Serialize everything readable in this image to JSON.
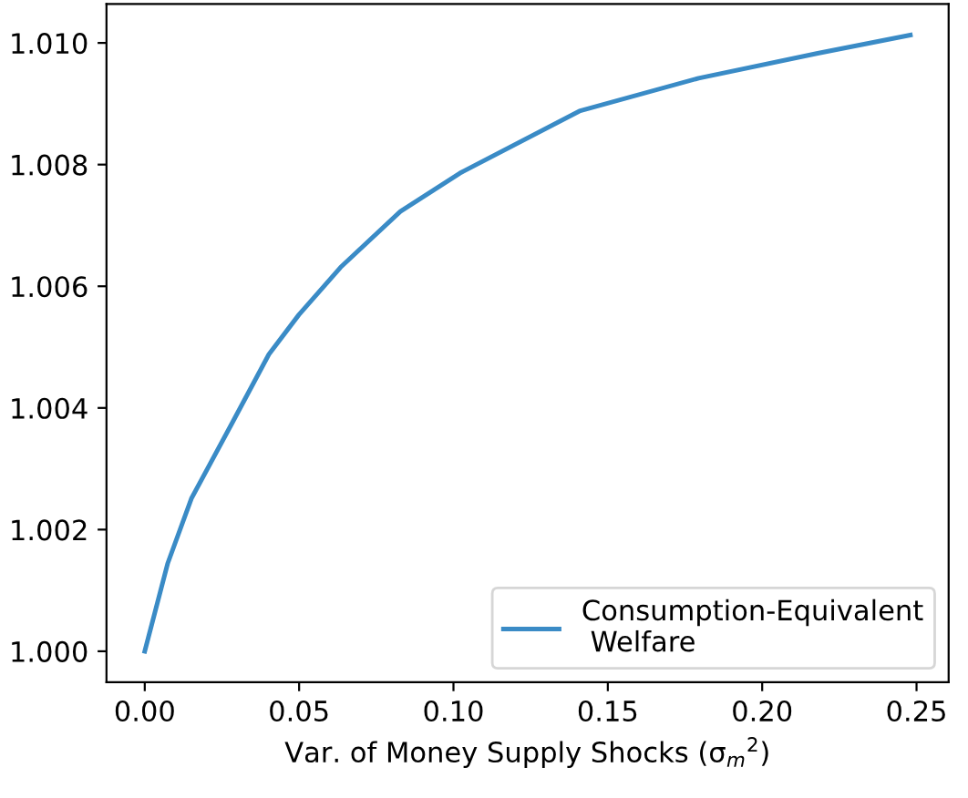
{
  "chart_data": {
    "type": "line",
    "xlabel": "Var. of Money Supply Shocks (σ$_{m}$$^{2}$)",
    "x": [
      0.0,
      0.0074,
      0.0151,
      0.0286,
      0.0402,
      0.0499,
      0.0634,
      0.0828,
      0.1021,
      0.1408,
      0.1794,
      0.218,
      0.248
    ],
    "series": [
      {
        "name": "Consumption-Equivalent\n Welfare",
        "color": "#3a8bc6",
        "values": [
          1.0,
          1.00144,
          1.00251,
          1.00378,
          1.00488,
          1.00553,
          1.00631,
          1.00723,
          1.00786,
          1.00888,
          1.00942,
          1.00983,
          1.01013
        ]
      }
    ],
    "xlim": [
      -0.0124,
      0.2604
    ],
    "ylim": [
      0.99949,
      1.01064
    ],
    "xticks": [
      {
        "value": 0.0,
        "label": "0.00"
      },
      0.05,
      {
        "value": 0.1,
        "label": "0.10"
      },
      0.15,
      {
        "value": 0.2,
        "label": "0.20"
      },
      0.25
    ],
    "yticks": [
      {
        "value": 1.0,
        "label": "1.000"
      },
      1.002,
      1.004,
      1.006,
      1.008,
      {
        "value": 1.01,
        "label": "1.010"
      }
    ],
    "legend": "bottom right",
    "grid": false
  }
}
